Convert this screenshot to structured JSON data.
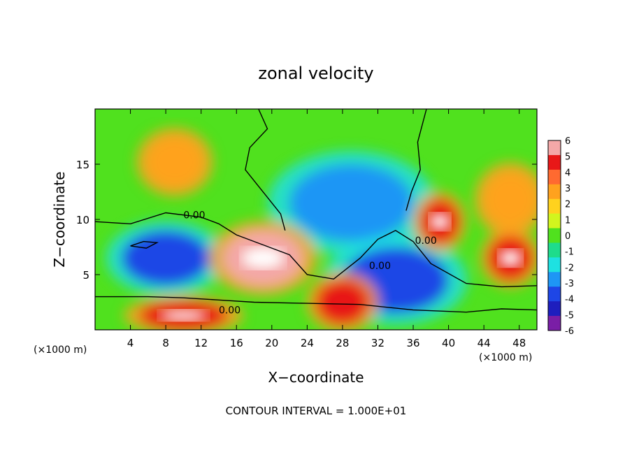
{
  "chart_data": {
    "type": "heatmap",
    "title": "zonal velocity",
    "xlabel": "X−coordinate",
    "ylabel": "Z−coordinate",
    "x_unit_left": "(×1000 m)",
    "x_unit_right": "(×1000 m)",
    "xlim": [
      0,
      50
    ],
    "ylim": [
      0,
      20
    ],
    "xticks": [
      4,
      8,
      12,
      16,
      20,
      24,
      28,
      32,
      36,
      40,
      44,
      48
    ],
    "yticks": [
      5,
      10,
      15
    ],
    "footer": "CONTOUR INTERVAL = 1.000E+01",
    "contour_label": "0.00",
    "colorbar": {
      "levels": [
        6,
        5,
        4,
        3,
        2,
        1,
        0,
        -1,
        -2,
        -3,
        -4,
        -5,
        -6
      ],
      "colors": [
        "#f4a8a8",
        "#e81818",
        "#ff6a30",
        "#ffa21e",
        "#ffd21e",
        "#d2f51e",
        "#50e11e",
        "#1edc8c",
        "#1ee1e1",
        "#1e96f5",
        "#1e46e6",
        "#1e1ebe",
        "#7a1ea6"
      ]
    },
    "features": [
      {
        "kind": "positive",
        "cx": 9,
        "cz": 15.2,
        "rx": 3.2,
        "rz": 2.3,
        "value": 3.2
      },
      {
        "kind": "positive",
        "cx": 47,
        "cz": 11.8,
        "rx": 3.0,
        "rz": 2.5,
        "value": 2.6
      },
      {
        "kind": "negative",
        "cx": 29,
        "cz": 11.5,
        "rx": 7.0,
        "rz": 3.5,
        "value": -3.2
      },
      {
        "kind": "negative",
        "cx": 8,
        "cz": 6.5,
        "rx": 5.0,
        "rz": 2.5,
        "value": -4.0
      },
      {
        "kind": "negative",
        "cx": 34,
        "cz": 4.5,
        "rx": 6.0,
        "rz": 3.0,
        "value": -4.3
      },
      {
        "kind": "positive",
        "cx": 19,
        "cz": 6.5,
        "rx": 4.5,
        "rz": 2.5,
        "value": 5.5
      },
      {
        "kind": "positive",
        "cx": 39,
        "cz": 9.8,
        "rx": 2.2,
        "rz": 2.0,
        "value": 5.2
      },
      {
        "kind": "positive",
        "cx": 28,
        "cz": 2.5,
        "rx": 3.0,
        "rz": 2.0,
        "value": 4.5
      },
      {
        "kind": "positive",
        "cx": 10,
        "cz": 1.3,
        "rx": 5.0,
        "rz": 1.3,
        "value": 5.0
      },
      {
        "kind": "positive",
        "cx": 47,
        "cz": 6.5,
        "rx": 2.5,
        "rz": 2.0,
        "value": 5.0
      }
    ]
  }
}
